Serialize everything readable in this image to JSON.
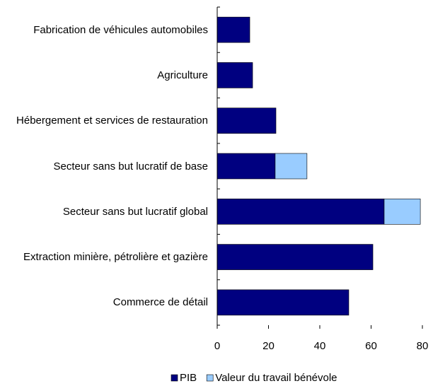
{
  "chart_data": {
    "type": "bar",
    "orientation": "horizontal",
    "stacked": true,
    "categories": [
      "Fabrication de véhicules automobiles",
      "Agriculture",
      "Hébergement et services de restauration",
      "Secteur sans but lucratif de base",
      "Secteur sans but lucratif global",
      "Extraction minière, pétrolière et gazière",
      "Commerce de détail"
    ],
    "series": [
      {
        "name": "PIB",
        "color": "#000080",
        "values": [
          12.7,
          13.8,
          22.9,
          22.6,
          65.1,
          60.7,
          51.3
        ]
      },
      {
        "name": "Valeur du travail bénévole",
        "color": "#99ccff",
        "values": [
          null,
          null,
          null,
          12.4,
          14.1,
          null,
          null
        ]
      }
    ],
    "xlim": [
      0,
      80
    ],
    "xticks": [
      0,
      20,
      40,
      60,
      80
    ],
    "legend": "bottom"
  }
}
